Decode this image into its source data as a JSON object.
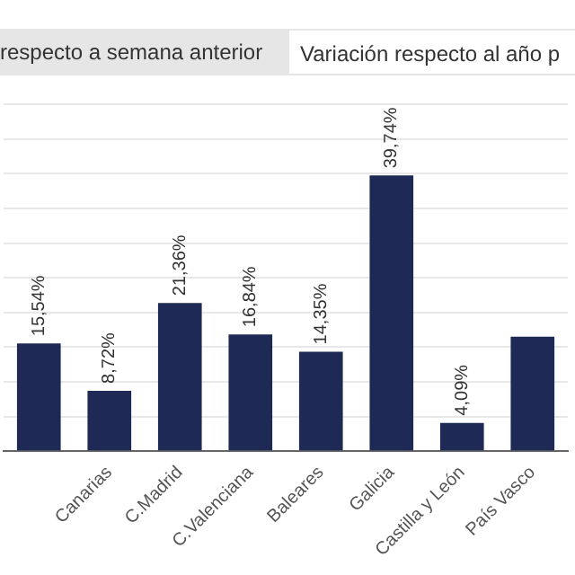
{
  "chart_data": {
    "type": "bar",
    "annotations": [
      "respecto a semana anterior",
      "Variación respecto al año p"
    ],
    "categories": [
      null,
      "Canarias",
      "C.Madrid",
      "C.Valenciana",
      "Baleares",
      "Galicia",
      "Castilla y León",
      "País Vasco"
    ],
    "values": [
      15.54,
      8.72,
      21.36,
      16.84,
      14.35,
      39.74,
      4.09,
      16.5
    ],
    "value_labels": [
      "15,54%",
      "8,72%",
      "21,36%",
      "16,84%",
      "14,35%",
      "39,74%",
      "4,09%",
      null
    ],
    "color": "#1e2a55",
    "ylim": [
      0,
      50
    ],
    "yticks": [
      {
        "value": 0,
        "label": null
      },
      {
        "value": 5,
        "label": null
      },
      {
        "value": 10,
        "label": null
      },
      {
        "value": 15,
        "label": null
      },
      {
        "value": 20,
        "label": null
      },
      {
        "value": 25,
        "label": null
      },
      {
        "value": 30,
        "label": null
      },
      {
        "value": 35,
        "label": null
      },
      {
        "value": 40,
        "label": null
      },
      {
        "value": 45,
        "label": null
      },
      {
        "value": 50,
        "label": null
      }
    ],
    "grid": "y",
    "legend": false
  }
}
